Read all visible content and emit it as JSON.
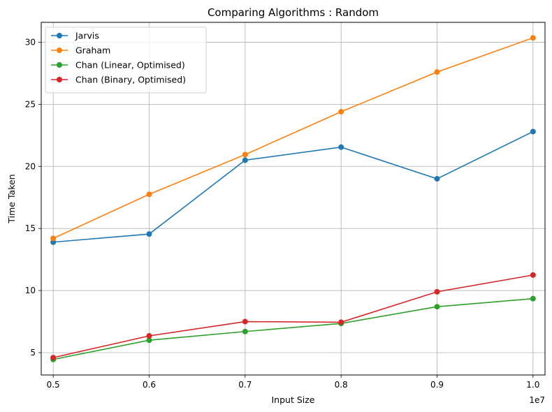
{
  "chart_data": {
    "type": "line",
    "title": "Comparing Algorithms : Random",
    "xlabel": "Input Size",
    "ylabel": "Time Taken",
    "x_offset_text": "1e7",
    "x": [
      0.5,
      0.6,
      0.7,
      0.8,
      0.9,
      1.0
    ],
    "x_tick_labels": [
      "0.5",
      "0.6",
      "0.7",
      "0.8",
      "0.9",
      "1.0"
    ],
    "y_ticks": [
      5,
      10,
      15,
      20,
      25,
      30
    ],
    "xlim": [
      0.4875,
      1.0125
    ],
    "ylim": [
      3.2,
      31.6
    ],
    "grid": true,
    "legend_position": "top-left",
    "series": [
      {
        "name": "Jarvis",
        "color": "#1f77b4",
        "values": [
          13.9,
          14.55,
          20.5,
          21.55,
          19.0,
          22.8
        ]
      },
      {
        "name": "Graham",
        "color": "#ff7f0e",
        "values": [
          14.2,
          17.75,
          20.95,
          24.4,
          27.6,
          30.35
        ]
      },
      {
        "name": "Chan (Linear, Optimised)",
        "color": "#2ca02c",
        "values": [
          4.45,
          6.0,
          6.7,
          7.35,
          8.7,
          9.35
        ]
      },
      {
        "name": "Chan (Binary, Optimised)",
        "color": "#d62728",
        "values": [
          4.6,
          6.35,
          7.5,
          7.45,
          9.9,
          11.25
        ]
      }
    ]
  }
}
